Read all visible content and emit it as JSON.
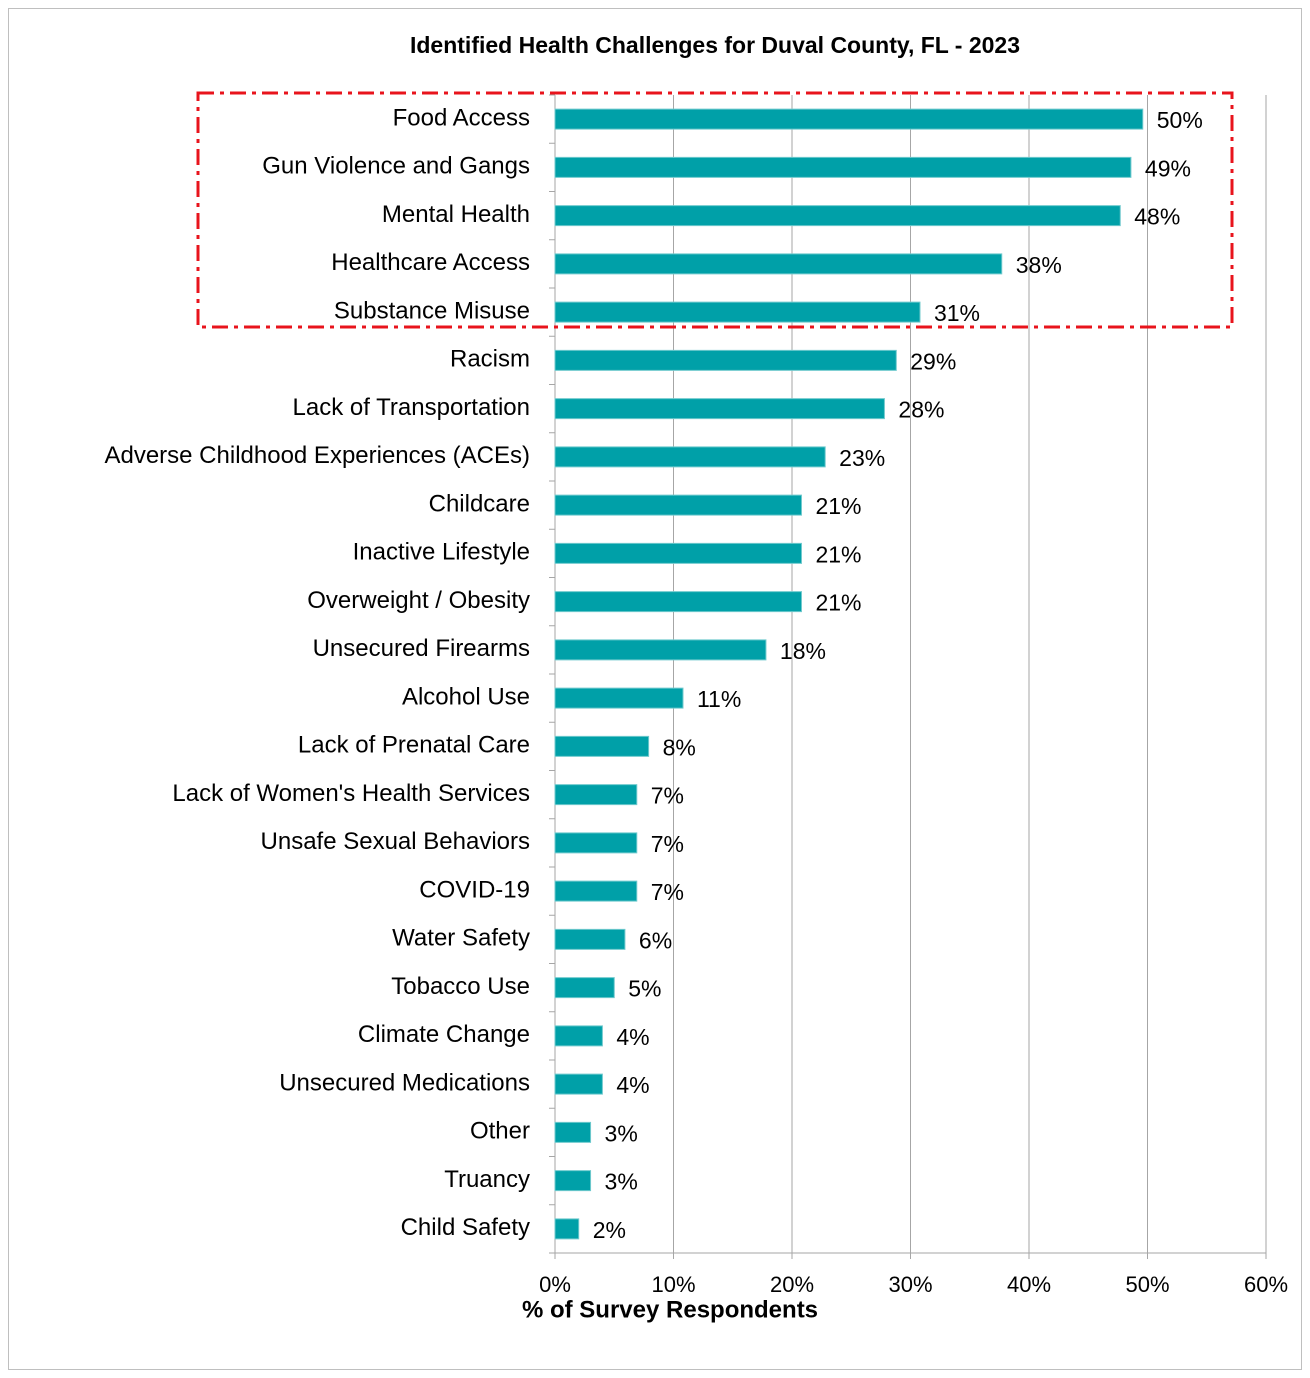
{
  "chart_data": {
    "type": "bar",
    "orientation": "horizontal",
    "title": "Identified Health Challenges for Duval County, FL - 2023",
    "x_label": "% of Survey Respondents",
    "categories": [
      "Food Access",
      "Gun Violence and Gangs",
      "Mental Health",
      "Healthcare Access",
      "Substance Misuse",
      "Racism",
      "Lack of Transportation",
      "Adverse Childhood Experiences (ACEs)",
      "Childcare",
      "Inactive Lifestyle",
      "Overweight / Obesity",
      "Unsecured Firearms",
      "Alcohol Use",
      "Lack of Prenatal Care",
      "Lack of Women's Health Services",
      "Unsafe Sexual Behaviors",
      "COVID-19",
      "Water Safety",
      "Tobacco Use",
      "Climate Change",
      "Unsecured Medications",
      "Other",
      "Truancy",
      "Child Safety"
    ],
    "values": [
      49.6,
      48.6,
      47.7,
      37.7,
      30.8,
      28.8,
      27.8,
      22.8,
      20.8,
      20.8,
      20.8,
      17.8,
      10.8,
      7.9,
      6.9,
      6.9,
      6.9,
      5.9,
      5.0,
      4.0,
      4.0,
      3.0,
      3.0,
      2.0
    ],
    "value_labels": [
      "50%",
      "49%",
      "48%",
      "38%",
      "31%",
      "29%",
      "28%",
      "23%",
      "21%",
      "21%",
      "21%",
      "18%",
      "11%",
      "8%",
      "7%",
      "7%",
      "7%",
      "6%",
      "5%",
      "4%",
      "4%",
      "3%",
      "3%",
      "2%"
    ],
    "color": "#00a0a8",
    "xlim": [
      0,
      60
    ],
    "xticks": [
      {
        "value": 0,
        "label": "0%"
      },
      {
        "value": 10,
        "label": "10%"
      },
      {
        "value": 20,
        "label": "20%"
      },
      {
        "value": 30,
        "label": "30%"
      },
      {
        "value": 40,
        "label": "40%"
      },
      {
        "value": 50,
        "label": "50%"
      },
      {
        "value": 60,
        "label": "60%"
      }
    ],
    "grid": true
  }
}
